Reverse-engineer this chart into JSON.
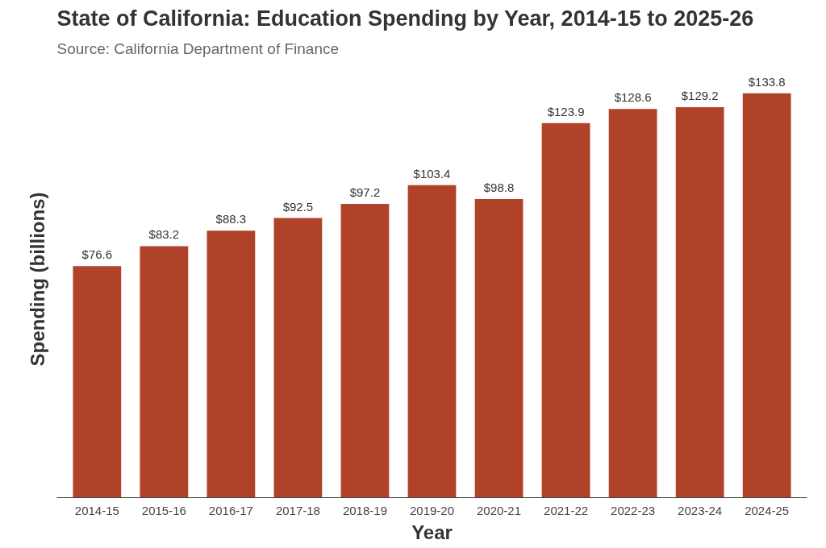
{
  "chart_data": {
    "type": "bar",
    "title": "State of California: Education Spending by Year, 2014-15 to 2025-26",
    "annotations": [
      "Source: California Department of Finance"
    ],
    "xlabel": "Year",
    "ylabel": "Spending (billions)",
    "categories": [
      "2014-15",
      "2015-16",
      "2016-17",
      "2017-18",
      "2018-19",
      "2019-20",
      "2020-21",
      "2021-22",
      "2022-23",
      "2023-24",
      "2024-25"
    ],
    "values": [
      76.6,
      83.2,
      88.3,
      92.5,
      97.2,
      103.4,
      98.8,
      123.9,
      128.6,
      129.2,
      133.8
    ],
    "value_labels": [
      "$76.6",
      "$83.2",
      "$88.3",
      "$92.5",
      "$97.2",
      "$103.4",
      "$98.8",
      "$123.9",
      "$128.6",
      "$129.2",
      "$133.8"
    ],
    "color": "#b0422a",
    "tick_labels": "x",
    "grid": false
  }
}
